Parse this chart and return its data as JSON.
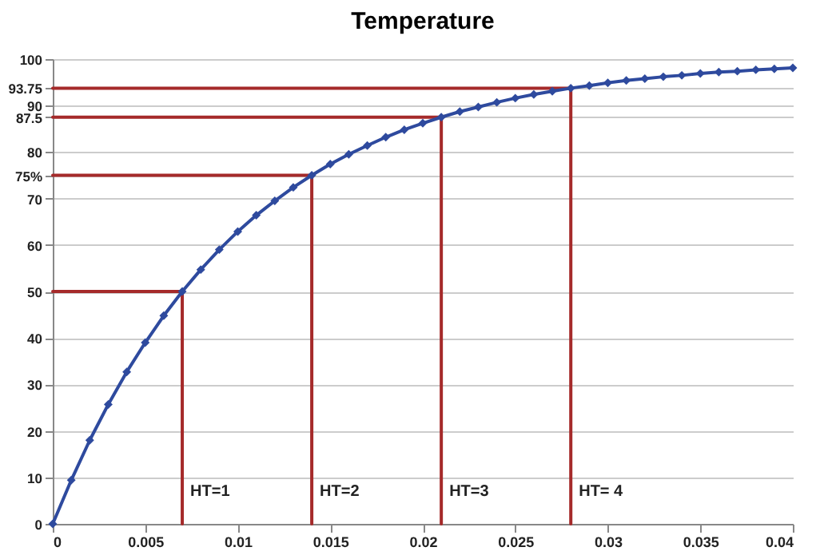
{
  "chart_data": {
    "type": "line",
    "title": "Temperature",
    "x": [
      0,
      0.001,
      0.002,
      0.003,
      0.004,
      0.005,
      0.006,
      0.007,
      0.008,
      0.009,
      0.01,
      0.011,
      0.012,
      0.013,
      0.014,
      0.015,
      0.016,
      0.017,
      0.018,
      0.019,
      0.02,
      0.021,
      0.022,
      0.023,
      0.024,
      0.025,
      0.026,
      0.027,
      0.028,
      0.029,
      0.03,
      0.031,
      0.032,
      0.033,
      0.034,
      0.035,
      0.036,
      0.037,
      0.038,
      0.039,
      0.04
    ],
    "series": [
      {
        "type": "line",
        "color": "#a52a2a",
        "marker": "none",
        "x": [
          0,
          0.007,
          0.007
        ],
        "values": [
          50,
          50,
          0
        ]
      },
      {
        "type": "line",
        "color": "#a52a2a",
        "marker": "none",
        "x": [
          0,
          0.014,
          0.014
        ],
        "values": [
          75,
          75,
          0
        ]
      },
      {
        "type": "line",
        "color": "#a52a2a",
        "marker": "none",
        "x": [
          0,
          0.021,
          0.021
        ],
        "values": [
          87.5,
          87.5,
          0
        ]
      },
      {
        "type": "line",
        "color": "#a52a2a",
        "marker": "none",
        "x": [
          0,
          0.028,
          0.028
        ],
        "values": [
          93.75,
          93.75,
          0
        ]
      },
      {
        "color": "#2e4a9e",
        "marker": "diamond",
        "values": [
          0,
          9.4,
          18.0,
          25.7,
          32.7,
          39.0,
          44.8,
          50.0,
          54.7,
          59.0,
          62.9,
          66.4,
          69.5,
          72.4,
          75.0,
          77.4,
          79.5,
          81.4,
          83.2,
          84.8,
          86.2,
          87.5,
          88.7,
          89.7,
          90.7,
          91.6,
          92.4,
          93.1,
          93.75,
          94.3,
          94.9,
          95.4,
          95.8,
          96.2,
          96.5,
          96.9,
          97.2,
          97.4,
          97.7,
          97.9,
          98.1
        ]
      }
    ],
    "annotations": [
      {
        "text": "HT=1",
        "x": 0.007,
        "y": 7
      },
      {
        "text": "HT=2",
        "x": 0.014,
        "y": 7
      },
      {
        "text": "HT=3",
        "x": 0.021,
        "y": 7
      },
      {
        "text": "HT= 4",
        "x": 0.028,
        "y": 7
      }
    ],
    "xlim": [
      0,
      0.04
    ],
    "xticks": [
      0,
      0.005,
      0.01,
      0.015,
      0.02,
      0.025,
      0.03,
      0.035,
      0.04
    ],
    "ylim": [
      0,
      100
    ],
    "yticks": [
      0,
      10,
      20,
      30,
      40,
      50,
      60,
      70,
      {
        "value": 75,
        "label": "75%"
      },
      80,
      87.5,
      90,
      93.75,
      100
    ],
    "grid": "y"
  }
}
